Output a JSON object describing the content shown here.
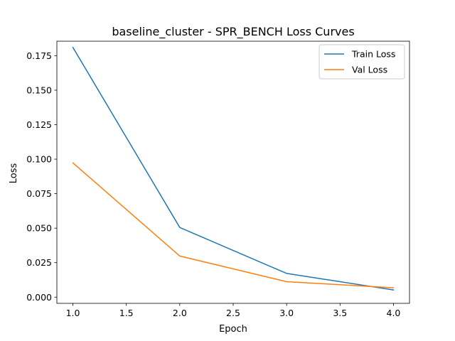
{
  "chart_data": {
    "type": "line",
    "title": "baseline_cluster - SPR_BENCH Loss Curves",
    "xlabel": "Epoch",
    "ylabel": "Loss",
    "xlim": [
      0.85,
      4.15
    ],
    "ylim": [
      -0.0045,
      0.1855
    ],
    "x_ticks": [
      1.0,
      1.5,
      2.0,
      2.5,
      3.0,
      3.5,
      4.0
    ],
    "x_tick_labels": [
      "1.0",
      "1.5",
      "2.0",
      "2.5",
      "3.0",
      "3.5",
      "4.0"
    ],
    "y_ticks": [
      0.0,
      0.025,
      0.05,
      0.075,
      0.1,
      0.125,
      0.15,
      0.175
    ],
    "y_tick_labels": [
      "0.000",
      "0.025",
      "0.050",
      "0.075",
      "0.100",
      "0.125",
      "0.150",
      "0.175"
    ],
    "grid": false,
    "legend_position": "top-right",
    "x": [
      1.0,
      2.0,
      3.0,
      4.0
    ],
    "series": [
      {
        "name": "Train Loss",
        "color": "#1f77b4",
        "values": [
          0.181,
          0.0505,
          0.0172,
          0.0052
        ]
      },
      {
        "name": "Val Loss",
        "color": "#ff7f0e",
        "values": [
          0.0973,
          0.0298,
          0.0112,
          0.0068
        ]
      }
    ]
  }
}
